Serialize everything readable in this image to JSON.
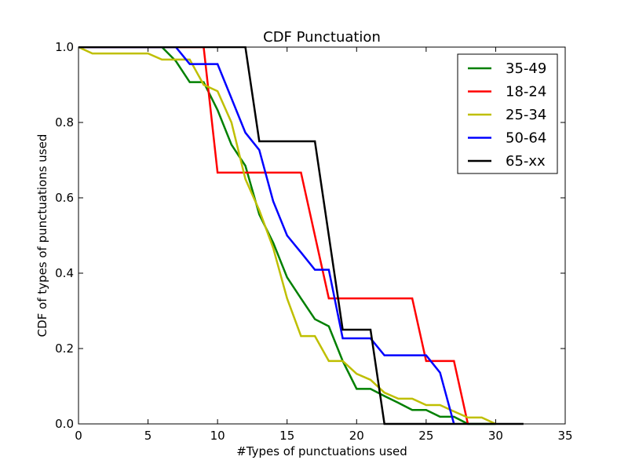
{
  "chart_data": {
    "type": "line",
    "title": "CDF Punctuation",
    "xlabel": "#Types of punctuations used",
    "ylabel": "CDF of types of punctuations used",
    "xlim": [
      0,
      35
    ],
    "ylim": [
      0,
      1
    ],
    "xticks": [
      "0",
      "5",
      "10",
      "15",
      "20",
      "25",
      "30",
      "35"
    ],
    "yticks": [
      "0.0",
      "0.2",
      "0.4",
      "0.6",
      "0.8",
      "1.0"
    ],
    "grid": false,
    "legend_position": "top-right",
    "series": [
      {
        "name": "35-49",
        "color": "#008000",
        "x": [
          0,
          6,
          7,
          8,
          9,
          10,
          11,
          12,
          13,
          14,
          15,
          16,
          17,
          18,
          19,
          20,
          21,
          22,
          23,
          24,
          25,
          26,
          27,
          28,
          29,
          30
        ],
        "y": [
          1.0,
          1.0,
          0.963,
          0.907,
          0.907,
          0.833,
          0.741,
          0.685,
          0.556,
          0.481,
          0.389,
          0.333,
          0.278,
          0.259,
          0.167,
          0.093,
          0.093,
          0.074,
          0.056,
          0.037,
          0.037,
          0.019,
          0.019,
          0.0,
          0.0,
          0.0
        ]
      },
      {
        "name": "18-24",
        "color": "#ff0000",
        "x": [
          0,
          9,
          10,
          16,
          18,
          24,
          25,
          27,
          28
        ],
        "y": [
          1.0,
          1.0,
          0.667,
          0.667,
          0.333,
          0.333,
          0.167,
          0.167,
          0.0
        ]
      },
      {
        "name": "25-34",
        "color": "#bfbf00",
        "x": [
          0,
          1,
          5,
          6,
          7,
          8,
          9,
          10,
          11,
          12,
          13,
          14,
          15,
          16,
          17,
          18,
          19,
          20,
          21,
          22,
          23,
          24,
          25,
          26,
          27,
          28,
          29,
          30
        ],
        "y": [
          1.0,
          0.983,
          0.983,
          0.967,
          0.967,
          0.967,
          0.9,
          0.883,
          0.8,
          0.65,
          0.567,
          0.467,
          0.333,
          0.233,
          0.233,
          0.167,
          0.167,
          0.133,
          0.117,
          0.083,
          0.067,
          0.067,
          0.05,
          0.05,
          0.033,
          0.017,
          0.017,
          0.0
        ]
      },
      {
        "name": "50-64",
        "color": "#0000ff",
        "x": [
          0,
          7,
          8,
          10,
          11,
          12,
          13,
          14,
          15,
          16,
          17,
          18,
          19,
          21,
          22,
          25,
          26,
          27
        ],
        "y": [
          1.0,
          1.0,
          0.955,
          0.955,
          0.864,
          0.773,
          0.727,
          0.591,
          0.5,
          0.455,
          0.409,
          0.409,
          0.227,
          0.227,
          0.182,
          0.182,
          0.136,
          0.0
        ]
      },
      {
        "name": "65-xx",
        "color": "#000000",
        "x": [
          0,
          12,
          13,
          17,
          19,
          21,
          22,
          32
        ],
        "y": [
          1.0,
          1.0,
          0.75,
          0.75,
          0.25,
          0.25,
          0.0,
          0.0
        ]
      }
    ]
  }
}
